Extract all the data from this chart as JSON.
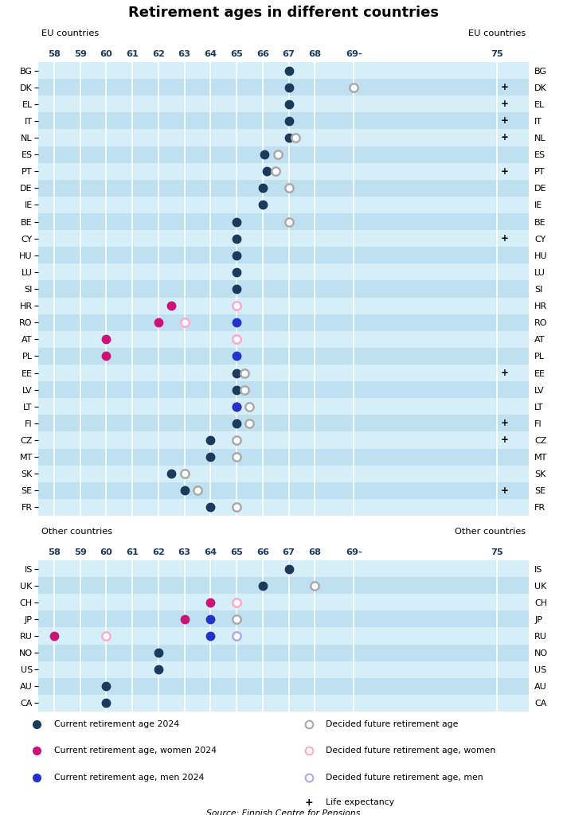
{
  "title": "Retirement ages in different countries",
  "bg_color": "#cce9f5",
  "row_alt1": "#d6eef8",
  "row_alt2": "#bfe0f0",
  "header_bg": "#a8d4ec",
  "eu_countries": [
    "BG",
    "DK",
    "EL",
    "IT",
    "NL",
    "ES",
    "PT",
    "DE",
    "IE",
    "BE",
    "CY",
    "HU",
    "LU",
    "SI",
    "HR",
    "RO",
    "AT",
    "PL",
    "EE",
    "LV",
    "LT",
    "FI",
    "CZ",
    "MT",
    "SK",
    "SE",
    "FR"
  ],
  "other_countries": [
    "IS",
    "UK",
    "CH",
    "JP",
    "RU",
    "NO",
    "US",
    "AU",
    "CA"
  ],
  "life_expectancy_eu": [
    "DK",
    "EL",
    "IT",
    "NL",
    "PT",
    "CY",
    "EE",
    "FI",
    "CZ",
    "SE"
  ],
  "life_expectancy_other": [],
  "colors": {
    "current": "#1b3a5c",
    "current_women": "#cc1177",
    "current_men": "#2233cc",
    "future": "#aaaaaa",
    "future_women": "#ffaacc",
    "future_men": "#aaaaee"
  },
  "eu_data": {
    "BG": {
      "current": 67
    },
    "DK": {
      "current": 67,
      "future": 69.5
    },
    "EL": {
      "current": 67
    },
    "IT": {
      "current": 67
    },
    "NL": {
      "current": 67,
      "future": 67.25
    },
    "ES": {
      "current": 66.08,
      "future": 66.58
    },
    "PT": {
      "current": 66.17,
      "future": 66.5
    },
    "DE": {
      "current": 66,
      "future": 67
    },
    "IE": {
      "current": 66
    },
    "BE": {
      "current": 65,
      "future": 67
    },
    "CY": {
      "current": 65
    },
    "HU": {
      "current": 65
    },
    "LU": {
      "current": 65
    },
    "SI": {
      "current": 65
    },
    "HR": {
      "current_women": 62.5,
      "current_men": 65,
      "future_women": 65
    },
    "RO": {
      "current_women": 62,
      "future_women": 63,
      "current_men": 65
    },
    "AT": {
      "current_women": 60,
      "current_men": 65,
      "future_women": 65
    },
    "PL": {
      "current_women": 60,
      "current_men": 65
    },
    "EE": {
      "current": 65,
      "future": 65.3
    },
    "LV": {
      "current": 65,
      "future": 65.3
    },
    "LT": {
      "current_women": 65,
      "current_men": 65,
      "future": 65.5
    },
    "FI": {
      "current": 65,
      "future": 65.5
    },
    "CZ": {
      "current": 64,
      "future": 65
    },
    "MT": {
      "current": 64,
      "future": 65
    },
    "SK": {
      "current": 62.5,
      "future": 63
    },
    "SE": {
      "current": 63,
      "future": 63.5
    },
    "FR": {
      "current": 64,
      "future": 65
    }
  },
  "other_data": {
    "IS": {
      "current": 67
    },
    "UK": {
      "current": 66,
      "future": 68
    },
    "CH": {
      "current_women": 64,
      "current_men": 65,
      "future_women": 65
    },
    "JP": {
      "current_women": 63,
      "current_men": 64,
      "future": 65
    },
    "RU": {
      "current_women": 58,
      "current_men": 64,
      "future_women": 60,
      "future_men": 65
    },
    "NO": {
      "current": 62
    },
    "US": {
      "current": 62
    },
    "AU": {
      "current": 60
    },
    "CA": {
      "current": 60
    }
  },
  "x_ticks": [
    58,
    59,
    60,
    61,
    62,
    63,
    64,
    65,
    66,
    67,
    68,
    69.5,
    75
  ],
  "x_tick_labels": [
    "58",
    "59",
    "60",
    "61",
    "62",
    "63",
    "64",
    "65",
    "66",
    "67",
    "68",
    "69-",
    "75"
  ],
  "x_min": 57.4,
  "x_max": 76.2
}
